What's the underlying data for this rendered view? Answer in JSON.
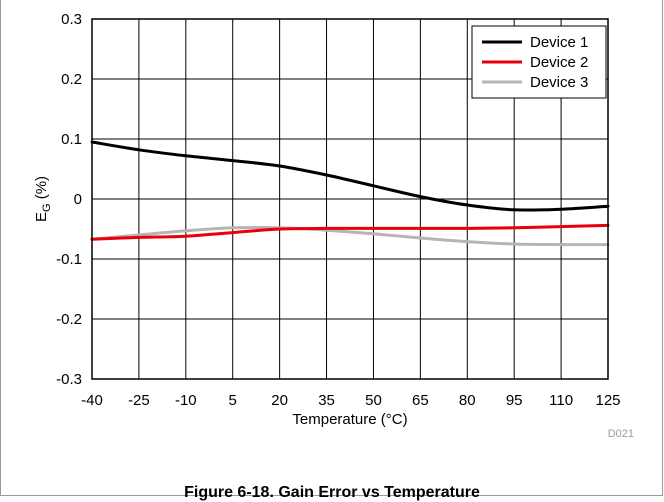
{
  "chart_data": {
    "type": "line",
    "xlabel": "Temperature (°C)",
    "ylabel_main": "E",
    "ylabel_sub": "G",
    "ylabel_unit": " (%)",
    "xlim": [
      -40,
      125
    ],
    "ylim": [
      -0.3,
      0.3
    ],
    "x_ticks": [
      -40,
      -25,
      -10,
      5,
      20,
      35,
      50,
      65,
      80,
      95,
      110,
      125
    ],
    "y_ticks": [
      0.3,
      0.2,
      0.1,
      0,
      -0.1,
      -0.2,
      -0.3
    ],
    "x_tick_labels": [
      "-40",
      "-25",
      "-10",
      "5",
      "20",
      "35",
      "50",
      "65",
      "80",
      "95",
      "110",
      "125"
    ],
    "y_tick_labels": [
      "0.3",
      "0.2",
      "0.1",
      "0",
      "-0.1",
      "-0.2",
      "-0.3"
    ],
    "grid": true,
    "legend_position": "top-right",
    "series": [
      {
        "name": "Device 1",
        "color": "#000000",
        "x": [
          -40,
          -25,
          -10,
          5,
          20,
          35,
          50,
          65,
          80,
          95,
          110,
          125
        ],
        "y": [
          0.095,
          0.082,
          0.072,
          0.064,
          0.055,
          0.04,
          0.022,
          0.004,
          -0.01,
          -0.018,
          -0.017,
          -0.012
        ]
      },
      {
        "name": "Device 2",
        "color": "#e8000b",
        "x": [
          -40,
          -25,
          -10,
          5,
          20,
          35,
          50,
          65,
          80,
          95,
          110,
          125
        ],
        "y": [
          -0.067,
          -0.064,
          -0.062,
          -0.056,
          -0.05,
          -0.049,
          -0.049,
          -0.049,
          -0.049,
          -0.048,
          -0.046,
          -0.044
        ]
      },
      {
        "name": "Device 3",
        "color": "#b5b5b5",
        "x": [
          -40,
          -25,
          -10,
          5,
          20,
          35,
          50,
          65,
          80,
          95,
          110,
          125
        ],
        "y": [
          -0.067,
          -0.06,
          -0.053,
          -0.048,
          -0.048,
          -0.052,
          -0.058,
          -0.065,
          -0.071,
          -0.075,
          -0.076,
          -0.076
        ]
      }
    ]
  },
  "watermark": "D021",
  "caption": "Figure 6-18. Gain Error vs Temperature"
}
